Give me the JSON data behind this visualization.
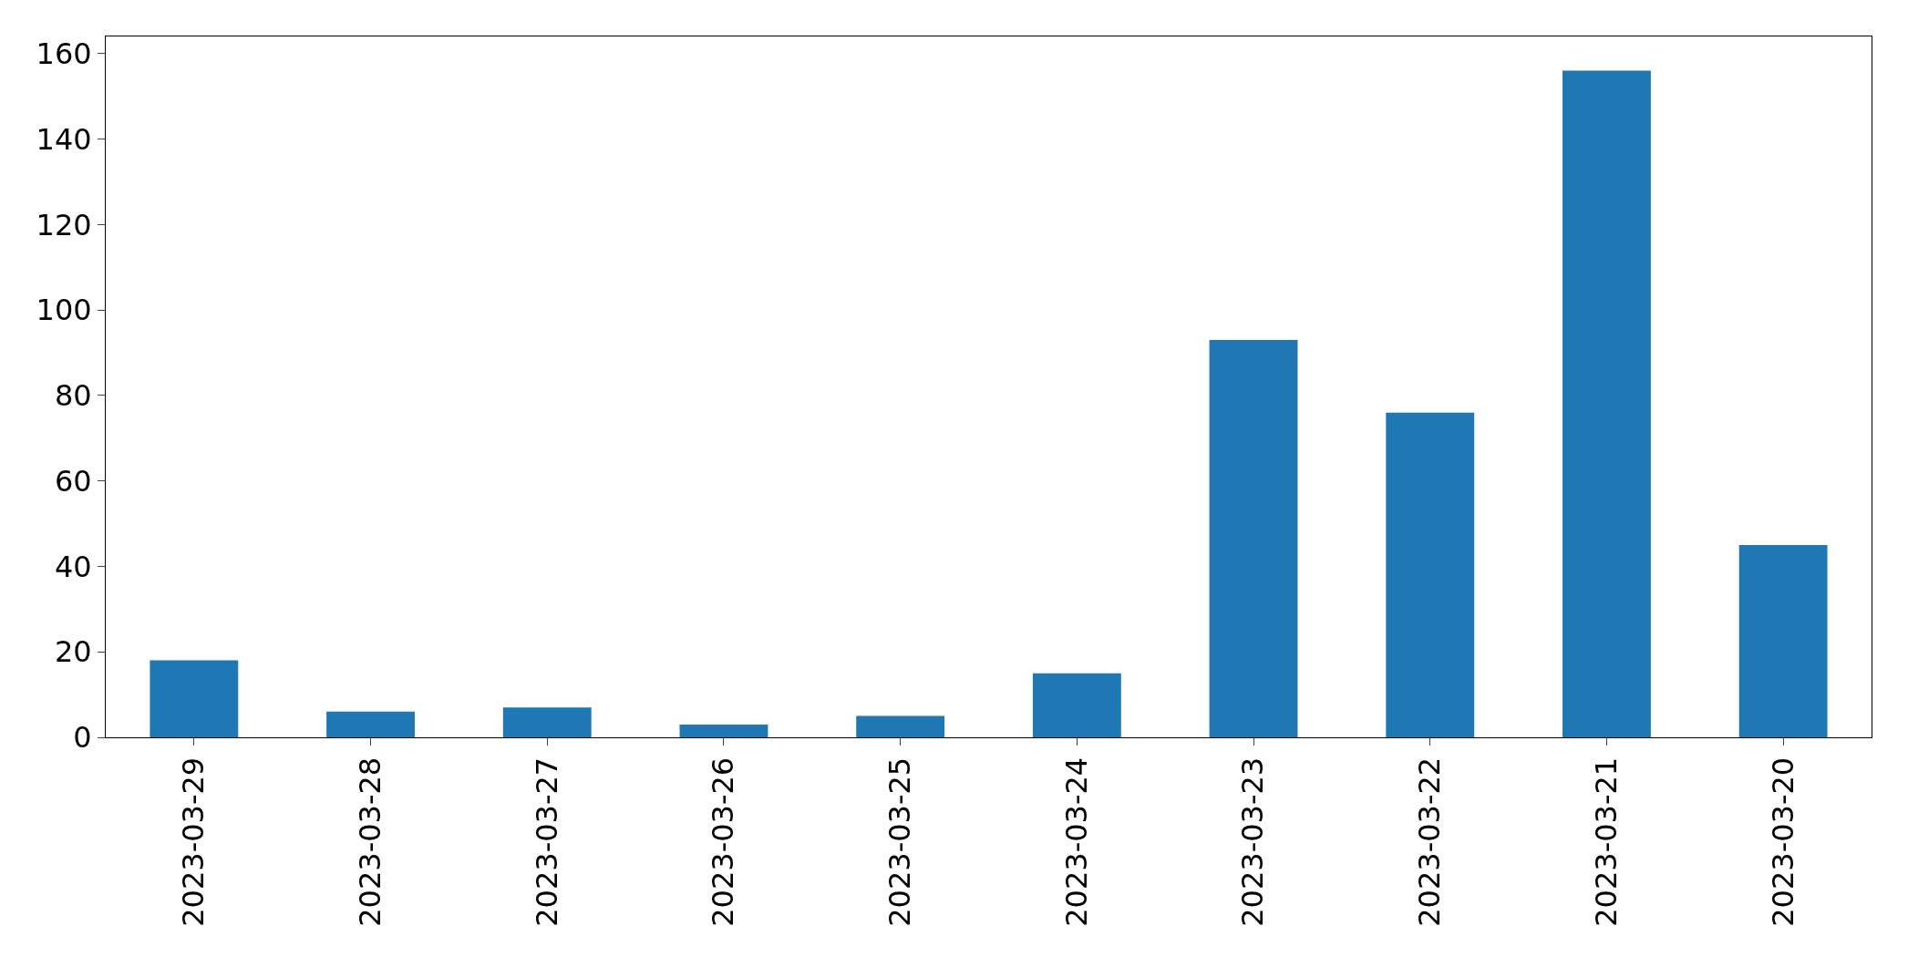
{
  "chart_data": {
    "type": "bar",
    "categories": [
      "2023-03-29",
      "2023-03-28",
      "2023-03-27",
      "2023-03-26",
      "2023-03-25",
      "2023-03-24",
      "2023-03-23",
      "2023-03-22",
      "2023-03-21",
      "2023-03-20"
    ],
    "values": [
      18,
      6,
      7,
      3,
      5,
      15,
      93,
      76,
      156,
      45
    ],
    "color": "#1f77b4",
    "ylim": [
      0,
      164
    ],
    "yticks": [
      0,
      20,
      40,
      60,
      80,
      100,
      120,
      140,
      160
    ],
    "grid": false
  }
}
